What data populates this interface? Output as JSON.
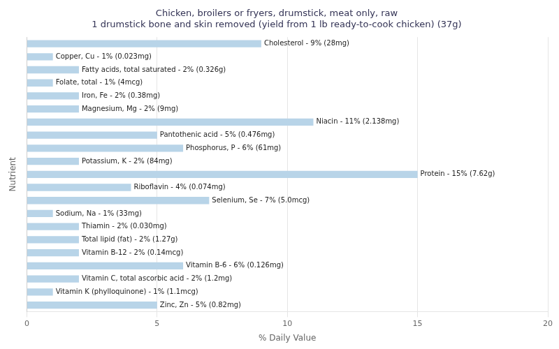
{
  "chart_data": {
    "type": "bar",
    "orientation": "horizontal",
    "title": "Chicken, broilers or fryers, drumstick, meat only, raw\n1 drumstick bone and skin removed (yield from 1 lb ready-to-cook chicken) (37g)",
    "xlabel": "% Daily Value",
    "ylabel": "Nutrient",
    "categories": [
      "Cholesterol - 9% (28mg)",
      "Copper, Cu - 1% (0.023mg)",
      "Fatty acids, total saturated - 2% (0.326g)",
      "Folate, total - 1% (4mcg)",
      "Iron, Fe - 2% (0.38mg)",
      "Magnesium, Mg - 2% (9mg)",
      "Niacin - 11% (2.138mg)",
      "Pantothenic acid - 5% (0.476mg)",
      "Phosphorus, P - 6% (61mg)",
      "Potassium, K - 2% (84mg)",
      "Protein - 15% (7.62g)",
      "Riboflavin - 4% (0.074mg)",
      "Selenium, Se - 7% (5.0mcg)",
      "Sodium, Na - 1% (33mg)",
      "Thiamin - 2% (0.030mg)",
      "Total lipid (fat) - 2% (1.27g)",
      "Vitamin B-12 - 2% (0.14mcg)",
      "Vitamin B-6 - 6% (0.126mg)",
      "Vitamin C, total ascorbic acid - 2% (1.2mg)",
      "Vitamin K (phylloquinone) - 1% (1.1mcg)",
      "Zinc, Zn - 5% (0.82mg)"
    ],
    "values": [
      9,
      1,
      2,
      1,
      2,
      2,
      11,
      5,
      6,
      2,
      15,
      4,
      7,
      1,
      2,
      2,
      2,
      6,
      2,
      1,
      5
    ],
    "color": "#b8d4e8",
    "xlim": [
      0,
      20
    ],
    "xticks": [
      0,
      5,
      10,
      15,
      20
    ],
    "grid": true,
    "tick_labels": "x"
  }
}
